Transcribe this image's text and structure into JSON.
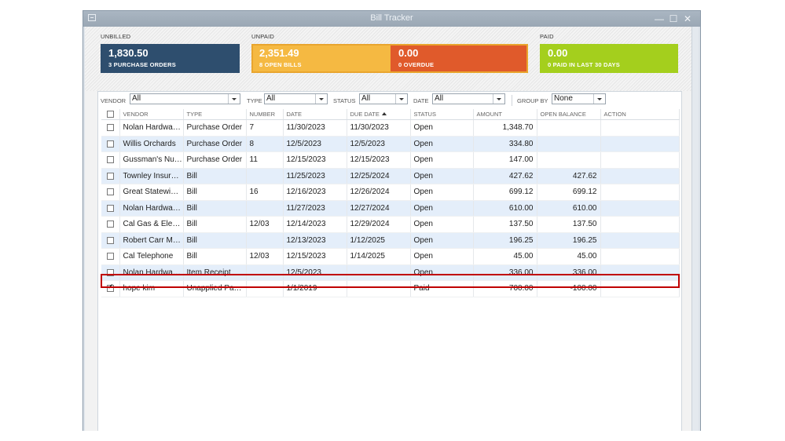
{
  "window": {
    "title": "Bill Tracker",
    "minimize": "—",
    "maximize": "☐",
    "close": "✕"
  },
  "summary": {
    "unbilled": {
      "label": "UNBILLED",
      "amount": "1,830.50",
      "subtitle": "3 PURCHASE ORDERS",
      "color": "#2e4e6e"
    },
    "unpaid": {
      "label": "UNPAID",
      "open": {
        "amount": "2,351.49",
        "subtitle": "8 OPEN BILLS",
        "color": "#f5b942"
      },
      "overdue": {
        "amount": "0.00",
        "subtitle": "0 OVERDUE",
        "color": "#e05a2b"
      }
    },
    "paid": {
      "label": "PAID",
      "amount": "0.00",
      "subtitle": "0 PAID IN LAST 30 DAYS",
      "color": "#a4cf1d"
    }
  },
  "filters": {
    "vendor": {
      "label": "VENDOR",
      "value": "All"
    },
    "type": {
      "label": "TYPE",
      "value": "All"
    },
    "status": {
      "label": "STATUS",
      "value": "All"
    },
    "date": {
      "label": "DATE",
      "value": "All"
    },
    "group_by": {
      "label": "GROUP BY",
      "value": "None"
    }
  },
  "table": {
    "columns": [
      "VENDOR",
      "TYPE",
      "NUMBER",
      "DATE",
      "DUE DATE",
      "STATUS",
      "AMOUNT",
      "OPEN BALANCE",
      "ACTION"
    ],
    "rows": [
      {
        "vendor": "Nolan Hardwar…",
        "type": "Purchase Order",
        "number": "7",
        "date": "11/30/2023",
        "due": "11/30/2023",
        "status": "Open",
        "amount": "1,348.70",
        "balance": "",
        "checked": false
      },
      {
        "vendor": "Willis Orchards",
        "type": "Purchase Order",
        "number": "8",
        "date": "12/5/2023",
        "due": "12/5/2023",
        "status": "Open",
        "amount": "334.80",
        "balance": "",
        "checked": false
      },
      {
        "vendor": "Gussman's Nur…",
        "type": "Purchase Order",
        "number": "11",
        "date": "12/15/2023",
        "due": "12/15/2023",
        "status": "Open",
        "amount": "147.00",
        "balance": "",
        "checked": false
      },
      {
        "vendor": "Townley Insura…",
        "type": "Bill",
        "number": "",
        "date": "11/25/2023",
        "due": "12/25/2024",
        "status": "Open",
        "amount": "427.62",
        "balance": "427.62",
        "checked": false
      },
      {
        "vendor": "Great Statewid…",
        "type": "Bill",
        "number": "16",
        "date": "12/16/2023",
        "due": "12/26/2024",
        "status": "Open",
        "amount": "699.12",
        "balance": "699.12",
        "checked": false
      },
      {
        "vendor": "Nolan Hardwar…",
        "type": "Bill",
        "number": "",
        "date": "11/27/2023",
        "due": "12/27/2024",
        "status": "Open",
        "amount": "610.00",
        "balance": "610.00",
        "checked": false
      },
      {
        "vendor": "Cal Gas & Elec…",
        "type": "Bill",
        "number": "12/03",
        "date": "12/14/2023",
        "due": "12/29/2024",
        "status": "Open",
        "amount": "137.50",
        "balance": "137.50",
        "checked": false
      },
      {
        "vendor": "Robert Carr Ma…",
        "type": "Bill",
        "number": "",
        "date": "12/13/2023",
        "due": "1/12/2025",
        "status": "Open",
        "amount": "196.25",
        "balance": "196.25",
        "checked": false
      },
      {
        "vendor": "Cal Telephone",
        "type": "Bill",
        "number": "12/03",
        "date": "12/15/2023",
        "due": "1/14/2025",
        "status": "Open",
        "amount": "45.00",
        "balance": "45.00",
        "checked": false
      },
      {
        "vendor": "Nolan Hardwar…",
        "type": "Item Receipt",
        "number": "",
        "date": "12/5/2023",
        "due": "",
        "status": "Open",
        "amount": "336.00",
        "balance": "336.00",
        "checked": false
      },
      {
        "vendor": "hope kim",
        "type": "Unapplied Pay…",
        "number": "",
        "date": "1/1/2019",
        "due": "",
        "status": "Paid",
        "amount": "700.00",
        "balance": "-100.00",
        "checked": true
      }
    ]
  }
}
